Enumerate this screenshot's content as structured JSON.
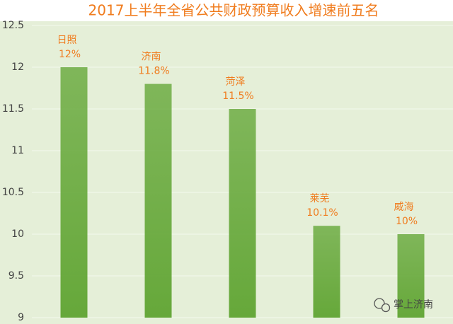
{
  "chart_data": {
    "type": "bar",
    "title": "2017上半年全省公共财政预算收入增速前五名",
    "categories": [
      "日照",
      "济南",
      "菏泽",
      "莱芜",
      "威海"
    ],
    "values": [
      12,
      11.8,
      11.5,
      10.1,
      10
    ],
    "value_labels": [
      "12%",
      "11.8%",
      "11.5%",
      "10.1%",
      "10%"
    ],
    "color": "#66a83a",
    "ylim": [
      9,
      12.5
    ],
    "yticks": [
      9,
      9.5,
      10,
      10.5,
      11,
      11.5,
      12,
      12.5
    ],
    "grid": true,
    "watermark": "掌上济南"
  }
}
